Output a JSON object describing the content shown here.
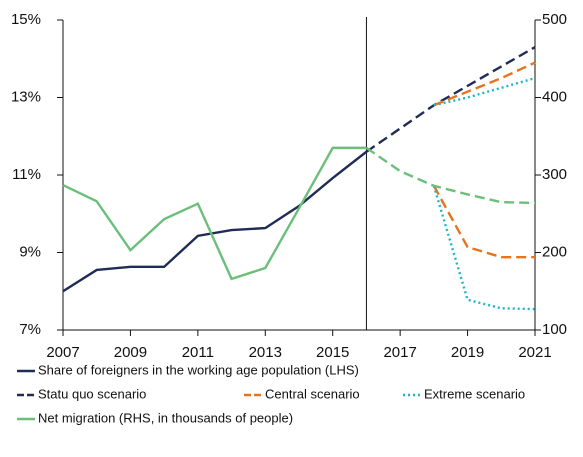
{
  "chart_data": {
    "type": "line",
    "x": [
      2007,
      2008,
      2009,
      2010,
      2011,
      2012,
      2013,
      2014,
      2015,
      2016,
      2017,
      2018,
      2019,
      2020,
      2021
    ],
    "xlim": [
      2007,
      2021
    ],
    "xticks": [
      2007,
      2009,
      2011,
      2013,
      2015,
      2017,
      2019,
      2021
    ],
    "ylim": [
      7,
      15
    ],
    "yticks": [
      {
        "value": 7,
        "label": "7%"
      },
      {
        "value": 9,
        "label": "9%"
      },
      {
        "value": 11,
        "label": "11%"
      },
      {
        "value": 13,
        "label": "13%"
      },
      {
        "value": 15,
        "label": "15%"
      }
    ],
    "y2lim": [
      100,
      500
    ],
    "y2ticks": [
      100,
      200,
      300,
      400,
      500
    ],
    "divider": 2016,
    "grid": false,
    "series": [
      {
        "name": "Share of foreigners in the working age population (LHS)",
        "color": "#1f2d56",
        "style": "solid",
        "values": [
          8.0,
          8.55,
          8.63,
          8.63,
          9.43,
          9.58,
          9.63,
          10.2,
          10.92,
          11.6,
          null,
          null,
          null,
          null,
          null
        ]
      },
      {
        "name": "Statu quo scenario",
        "color": "#1f2d56",
        "style": "dashed",
        "values": [
          null,
          null,
          null,
          null,
          null,
          null,
          null,
          null,
          null,
          11.6,
          12.2,
          12.8,
          13.3,
          13.8,
          14.3
        ]
      },
      {
        "name": "Central scenario",
        "color": "#e8731e",
        "style": "dashed",
        "values": [
          null,
          null,
          null,
          null,
          null,
          null,
          null,
          null,
          null,
          null,
          null,
          12.8,
          13.15,
          13.5,
          13.9
        ],
        "y2_values": [
          null,
          null,
          null,
          null,
          null,
          null,
          null,
          null,
          null,
          null,
          null,
          286,
          207,
          194,
          194
        ]
      },
      {
        "name": "Extreme scenario",
        "color": "#1fb5c9",
        "style": "dotted",
        "values": [
          null,
          null,
          null,
          null,
          null,
          null,
          null,
          null,
          null,
          null,
          null,
          12.8,
          13.0,
          13.25,
          13.5
        ],
        "y2_values": [
          null,
          null,
          null,
          null,
          null,
          null,
          null,
          null,
          null,
          null,
          null,
          286,
          139,
          128,
          127
        ]
      },
      {
        "name": "Net migration (RHS, in thousands of people)",
        "color": "#6cbf7b",
        "style": "solid",
        "axis": "y2",
        "values": [
          287,
          266,
          203,
          243,
          263,
          166,
          180,
          257,
          335,
          335,
          305,
          286,
          275,
          265,
          264
        ]
      }
    ]
  }
}
